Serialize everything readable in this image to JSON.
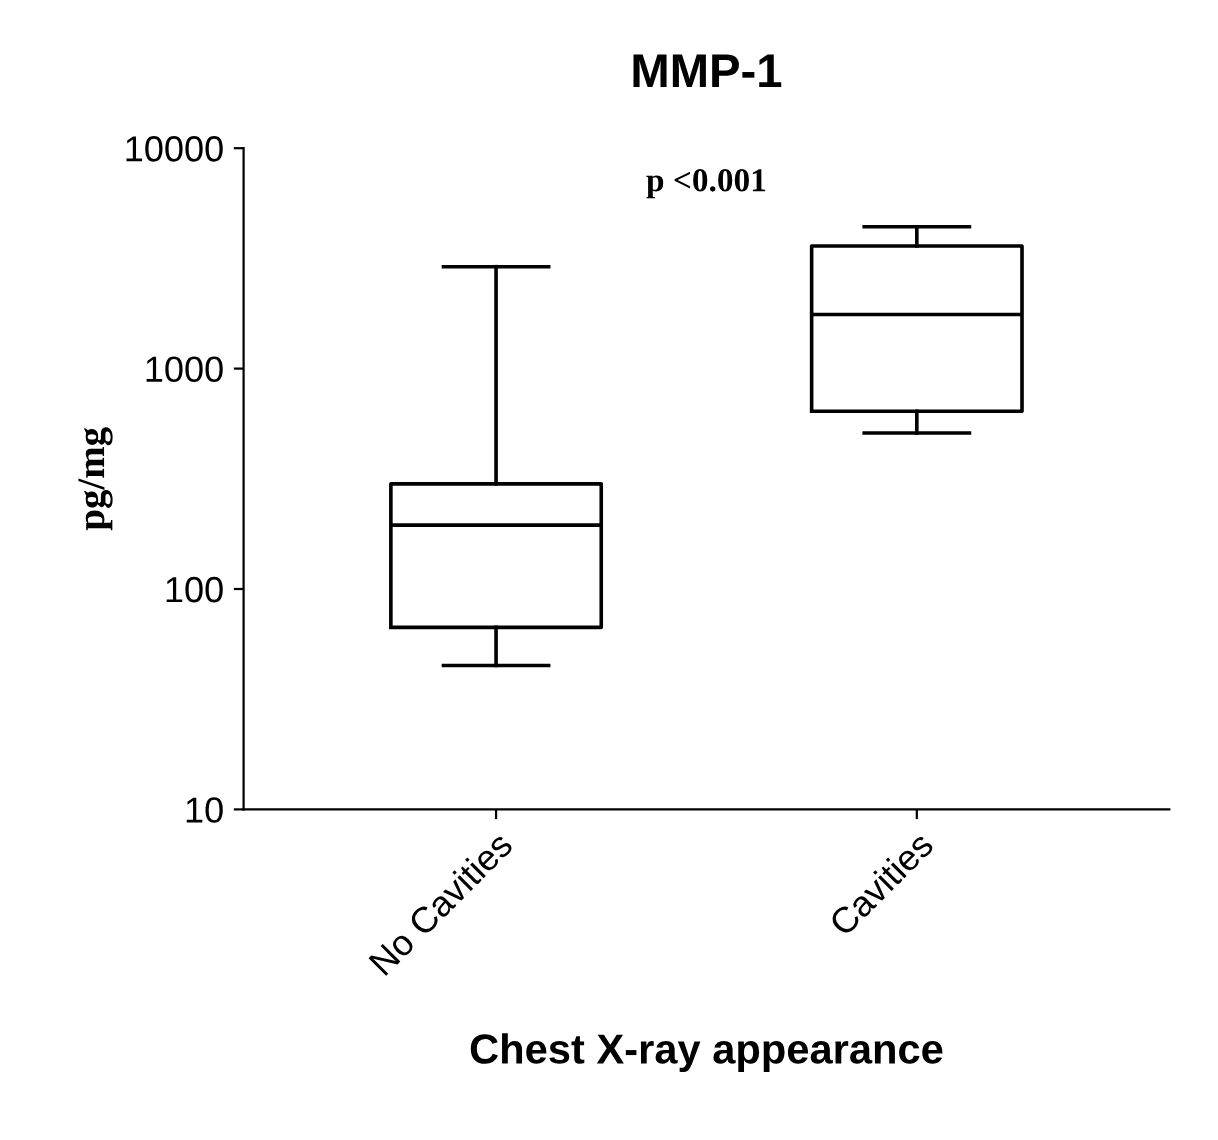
{
  "chart_data": {
    "type": "box",
    "title": "MMP-1",
    "xlabel": "Chest X-ray appearance",
    "ylabel": "pg/mg",
    "annotations": [
      "p <0.001"
    ],
    "categories": [
      "No Cavities",
      "Cavities"
    ],
    "boxes": [
      {
        "low": 45,
        "q1": 67,
        "median": 195,
        "q3": 300,
        "high": 2900
      },
      {
        "low": 510,
        "q1": 640,
        "median": 1760,
        "q3": 3600,
        "high": 4400
      }
    ],
    "log": true,
    "ylim": [
      10,
      10000
    ],
    "yticks": [
      10,
      100,
      1000,
      10000
    ],
    "grid": false,
    "legend": false
  }
}
